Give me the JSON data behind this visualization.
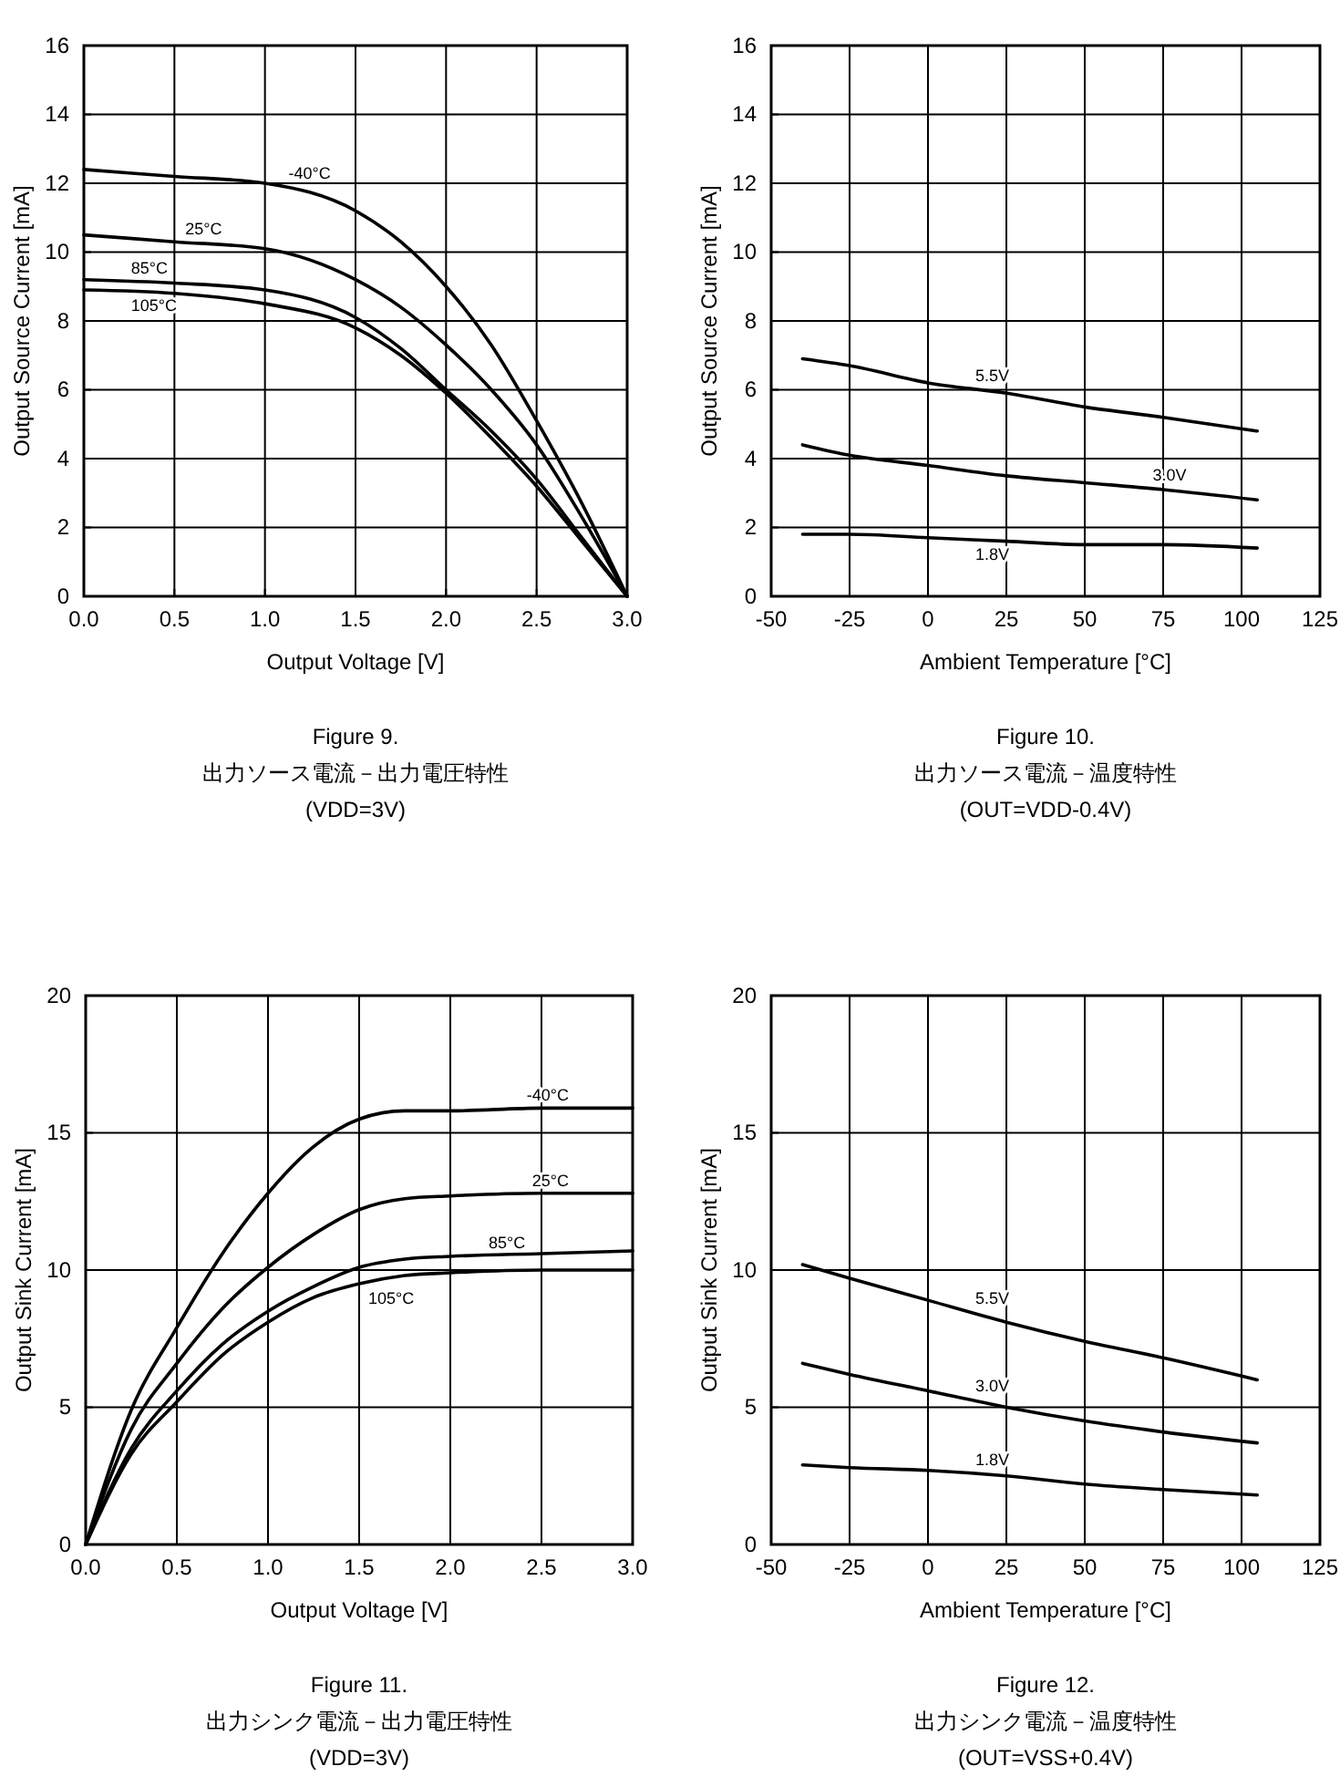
{
  "chart_data": [
    {
      "type": "line",
      "title": "Figure 9.",
      "subtitle": "出力ソース電流－出力電圧特性",
      "annotations": [
        "(VDD=3V)"
      ],
      "xlabel": "Output Voltage [V]",
      "ylabel": "Output Source Current [mA]",
      "xlim": [
        0,
        3
      ],
      "ylim": [
        0,
        16
      ],
      "xticks": [
        {
          "value": 0,
          "label": "0.0"
        },
        {
          "value": 0.5,
          "label": "0.5"
        },
        {
          "value": 1,
          "label": "1.0"
        },
        {
          "value": 1.5,
          "label": "1.5"
        },
        {
          "value": 2,
          "label": "2.0"
        },
        {
          "value": 2.5,
          "label": "2.5"
        },
        {
          "value": 3,
          "label": "3.0"
        }
      ],
      "yticks": [
        0,
        2,
        4,
        6,
        8,
        10,
        12,
        14,
        16
      ],
      "grid": true,
      "legend": false,
      "marker": "none",
      "line_style": "solid",
      "x": [
        0,
        0.5,
        1,
        1.5,
        1.75,
        2,
        2.25,
        2.5,
        2.75,
        3
      ],
      "series": [
        {
          "name": "-40°C",
          "color": "#000000",
          "values": [
            12.4,
            12.2,
            12.0,
            11.2,
            10.3,
            9.0,
            7.3,
            5.1,
            2.7,
            0
          ]
        },
        {
          "name": "25°C",
          "color": "#000000",
          "values": [
            10.5,
            10.3,
            10.1,
            9.2,
            8.4,
            7.3,
            6.0,
            4.4,
            2.3,
            0
          ]
        },
        {
          "name": "85°C",
          "color": "#000000",
          "values": [
            9.2,
            9.1,
            8.9,
            8.1,
            7.2,
            6.0,
            4.8,
            3.4,
            1.7,
            0
          ]
        },
        {
          "name": "105°C",
          "color": "#000000",
          "values": [
            8.9,
            8.8,
            8.5,
            7.8,
            7.0,
            5.9,
            4.6,
            3.2,
            1.6,
            0
          ]
        }
      ]
    },
    {
      "type": "line",
      "title": "Figure 10.",
      "subtitle": "出力ソース電流－温度特性",
      "annotations": [
        "(OUT=VDD-0.4V)"
      ],
      "xlabel": "Ambient Temperature [°C]",
      "ylabel": "Output Source Current [mA]",
      "xlim": [
        -50,
        125
      ],
      "ylim": [
        0,
        16
      ],
      "xticks": [
        -50,
        -25,
        0,
        25,
        50,
        75,
        100,
        125
      ],
      "yticks": [
        0,
        2,
        4,
        6,
        8,
        10,
        12,
        14,
        16
      ],
      "grid": true,
      "legend": false,
      "marker": "none",
      "line_style": "solid",
      "x": [
        -40,
        -25,
        0,
        25,
        50,
        75,
        105
      ],
      "series": [
        {
          "name": "5.5V",
          "color": "#000000",
          "values": [
            6.9,
            6.7,
            6.2,
            5.9,
            5.5,
            5.2,
            4.8
          ]
        },
        {
          "name": "3.0V",
          "color": "#000000",
          "values": [
            4.4,
            4.1,
            3.8,
            3.5,
            3.3,
            3.1,
            2.8
          ]
        },
        {
          "name": "1.8V",
          "color": "#000000",
          "values": [
            1.8,
            1.8,
            1.7,
            1.6,
            1.5,
            1.5,
            1.4
          ]
        }
      ]
    },
    {
      "type": "line",
      "title": "Figure 11.",
      "subtitle": "出力シンク電流－出力電圧特性",
      "annotations": [
        "(VDD=3V)"
      ],
      "xlabel": "Output Voltage [V]",
      "ylabel": "Output Sink Current [mA]",
      "xlim": [
        0,
        3
      ],
      "ylim": [
        0,
        20
      ],
      "xticks": [
        {
          "value": 0,
          "label": "0.0"
        },
        {
          "value": 0.5,
          "label": "0.5"
        },
        {
          "value": 1,
          "label": "1.0"
        },
        {
          "value": 1.5,
          "label": "1.5"
        },
        {
          "value": 2,
          "label": "2.0"
        },
        {
          "value": 2.5,
          "label": "2.5"
        },
        {
          "value": 3,
          "label": "3.0"
        }
      ],
      "yticks": [
        0,
        5,
        10,
        15,
        20
      ],
      "grid": true,
      "legend": false,
      "marker": "none",
      "line_style": "solid",
      "x": [
        0,
        0.25,
        0.5,
        0.75,
        1,
        1.25,
        1.5,
        1.75,
        2,
        2.5,
        3
      ],
      "series": [
        {
          "name": "-40°C",
          "color": "#000000",
          "values": [
            0,
            4.9,
            7.9,
            10.6,
            12.8,
            14.5,
            15.5,
            15.8,
            15.8,
            15.9,
            15.9
          ]
        },
        {
          "name": "25°C",
          "color": "#000000",
          "values": [
            0,
            4.2,
            6.6,
            8.6,
            10.1,
            11.3,
            12.2,
            12.6,
            12.7,
            12.8,
            12.8
          ]
        },
        {
          "name": "85°C",
          "color": "#000000",
          "values": [
            0,
            3.5,
            5.6,
            7.3,
            8.5,
            9.4,
            10.1,
            10.4,
            10.5,
            10.6,
            10.7
          ]
        },
        {
          "name": "105°C",
          "color": "#000000",
          "values": [
            0,
            3.3,
            5.2,
            6.9,
            8.1,
            9.0,
            9.5,
            9.8,
            9.9,
            10.0,
            10.0
          ]
        }
      ]
    },
    {
      "type": "line",
      "title": "Figure 12.",
      "subtitle": "出力シンク電流－温度特性",
      "annotations": [
        "(OUT=VSS+0.4V)"
      ],
      "xlabel": "Ambient Temperature [°C]",
      "ylabel": "Output Sink Current [mA]",
      "xlim": [
        -50,
        125
      ],
      "ylim": [
        0,
        20
      ],
      "xticks": [
        -50,
        -25,
        0,
        25,
        50,
        75,
        100,
        125
      ],
      "yticks": [
        0,
        5,
        10,
        15,
        20
      ],
      "grid": true,
      "legend": false,
      "marker": "none",
      "line_style": "solid",
      "x": [
        -40,
        -25,
        0,
        25,
        50,
        75,
        105
      ],
      "series": [
        {
          "name": "5.5V",
          "color": "#000000",
          "values": [
            10.2,
            9.7,
            8.9,
            8.1,
            7.4,
            6.8,
            6.0
          ]
        },
        {
          "name": "3.0V",
          "color": "#000000",
          "values": [
            6.6,
            6.2,
            5.6,
            5.0,
            4.5,
            4.1,
            3.7
          ]
        },
        {
          "name": "1.8V",
          "color": "#000000",
          "values": [
            2.9,
            2.8,
            2.7,
            2.5,
            2.2,
            2.0,
            1.8
          ]
        }
      ]
    }
  ]
}
